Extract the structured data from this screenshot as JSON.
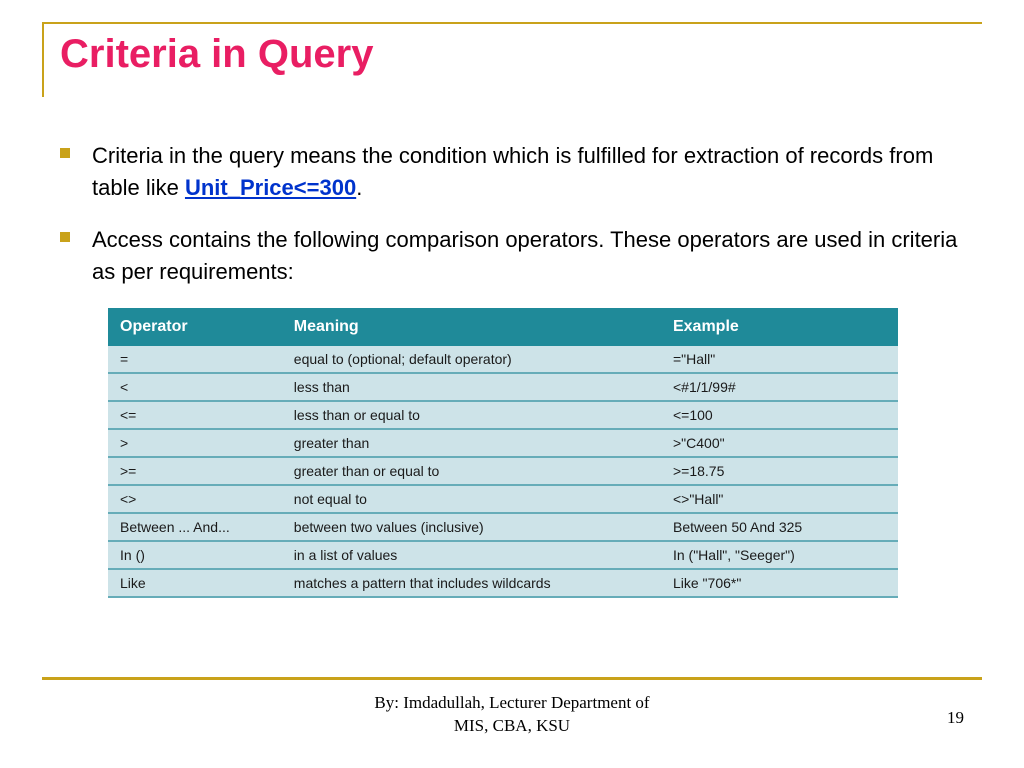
{
  "title": "Criteria in Query",
  "bullets": [
    {
      "prefix": "Criteria in the query means the condition which is fulfilled for extraction of records from table like ",
      "emph": "Unit_Price<=300",
      "suffix": "."
    },
    {
      "prefix": "Access contains the following comparison operators. These operators are used in criteria as per requirements:",
      "emph": "",
      "suffix": ""
    }
  ],
  "table": {
    "columns": [
      "Operator",
      "Meaning",
      "Example"
    ],
    "rows": [
      [
        "=",
        "equal to (optional; default operator)",
        "=\"Hall\""
      ],
      [
        "<",
        "less than",
        "<#1/1/99#"
      ],
      [
        "<=",
        "less than or equal to",
        "<=100"
      ],
      [
        ">",
        "greater than",
        ">\"C400\""
      ],
      [
        ">=",
        "greater than or equal to",
        ">=18.75"
      ],
      [
        "<>",
        "not equal to",
        "<>\"Hall\""
      ],
      [
        "Between ... And...",
        "between two values (inclusive)",
        "Between 50 And 325"
      ],
      [
        "In ()",
        "in a list of values",
        "In (\"Hall\", \"Seeger\")"
      ],
      [
        "Like",
        "matches a pattern that includes wildcards",
        "Like \"706*\""
      ]
    ],
    "header_bg": "#1f8a99",
    "header_fg": "#ffffff",
    "row_bg": "#cde3e8",
    "row_border": "#66acb8",
    "col_widths": [
      "22%",
      "48%",
      "30%"
    ],
    "header_fontsize": 16,
    "cell_fontsize": 14
  },
  "colors": {
    "accent_rule": "#c9a21a",
    "title": "#e91e63",
    "emphasis": "#0033cc",
    "background": "#ffffff"
  },
  "footer": {
    "line1": "By: Imdadullah, Lecturer Department of",
    "line2": "MIS, CBA, KSU"
  },
  "page_number": "19"
}
